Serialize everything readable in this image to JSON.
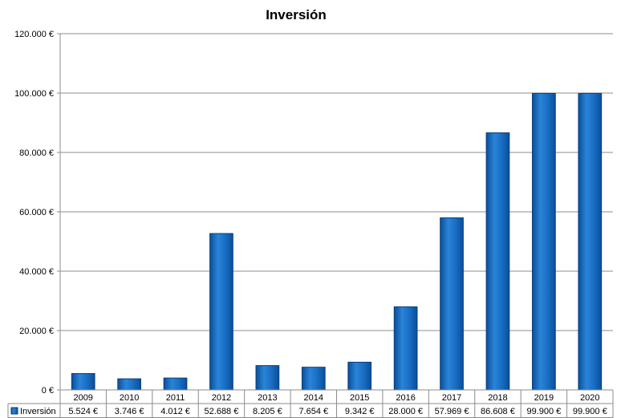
{
  "chart_data": {
    "type": "bar",
    "title": "Inversión",
    "categories": [
      "2009",
      "2010",
      "2011",
      "2012",
      "2013",
      "2014",
      "2015",
      "2016",
      "2017",
      "2018",
      "2019",
      "2020"
    ],
    "series": [
      {
        "name": "Inversión",
        "color": "#1a6fc4",
        "values": [
          5524,
          3746,
          4012,
          52688,
          8205,
          7654,
          9342,
          28000,
          57969,
          86608,
          99900,
          99900
        ],
        "value_labels": [
          "5.524 €",
          "3.746 €",
          "4.012 €",
          "52.688 €",
          "8.205 €",
          "7.654 €",
          "9.342 €",
          "28.000 €",
          "57.969 €",
          "86.608 €",
          "99.900 €",
          "99.900 €"
        ]
      }
    ],
    "ylim": [
      0,
      120000
    ],
    "yticks": [
      0,
      20000,
      40000,
      60000,
      80000,
      100000,
      120000
    ],
    "ytick_labels": [
      "0 €",
      "20.000 €",
      "40.000 €",
      "60.000 €",
      "80.000 €",
      "100.000 €",
      "120.000 €"
    ],
    "grid": true,
    "legend": "data-table-left",
    "data_table": true
  }
}
